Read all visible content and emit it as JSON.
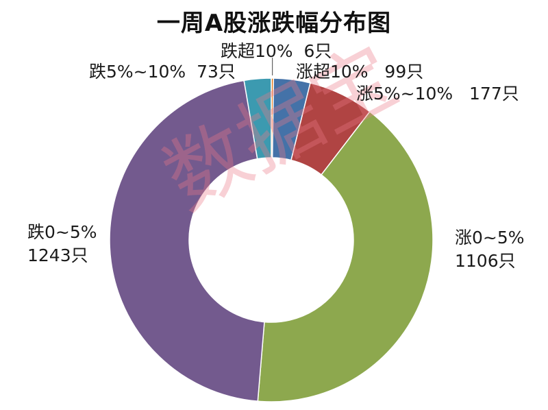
{
  "watermark_text": "数据宝",
  "chart_data": {
    "type": "pie",
    "title": "一周A股涨跌幅分布图",
    "donut": true,
    "slices": [
      {
        "label": "跌超10%",
        "value_text": "6只",
        "value": 6,
        "color": "#E67E22"
      },
      {
        "label": "涨超10%",
        "value_text": "99只",
        "value": 99,
        "color": "#4472A8"
      },
      {
        "label": "涨5%~10%",
        "value_text": "177只",
        "value": 177,
        "color": "#B04443"
      },
      {
        "label": "涨0~5%",
        "value_text": "1106只",
        "value": 1106,
        "color": "#8DA84E"
      },
      {
        "label": "跌0~5%",
        "value_text": "1243只",
        "value": 1243,
        "color": "#735A8E"
      },
      {
        "label": "跌5%~10%",
        "value_text": "73只",
        "value": 73,
        "color": "#3C9AB0"
      }
    ]
  }
}
